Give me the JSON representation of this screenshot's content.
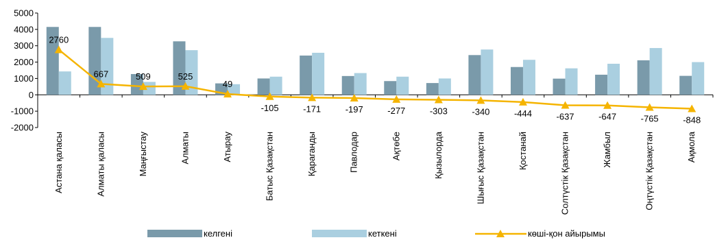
{
  "chart_data": {
    "type": "bar",
    "categories": [
      "Астана қаласы",
      "Алматы қаласы",
      "Маңғыстау",
      "Алматы",
      "Атырау",
      "Батыс Қазақстан",
      "Қараганды",
      "Павлодар",
      "Ақтөбе",
      "Қызылорда",
      "Шығыс Қазақстан",
      "Қостанай",
      "Солтүстік Қазақстан",
      "Жамбыл",
      "Оңтүстік Қазақстан",
      "Ақмола"
    ],
    "series": [
      {
        "name": "келгені",
        "kind": "bar",
        "color": "#7a9aaa",
        "values": [
          4150,
          4150,
          1270,
          3270,
          700,
          1000,
          2400,
          1150,
          840,
          720,
          2430,
          1700,
          990,
          1230,
          2110,
          1160
        ]
      },
      {
        "name": "кеткені",
        "kind": "bar",
        "color": "#aacfe0",
        "values": [
          1430,
          3480,
          790,
          2730,
          650,
          1110,
          2570,
          1330,
          1110,
          1000,
          2770,
          2140,
          1620,
          1900,
          2860,
          2000
        ]
      },
      {
        "name": "көші-қон айырымы",
        "kind": "line",
        "color": "#f5b400",
        "values": [
          2760,
          667,
          509,
          525,
          49,
          -105,
          -171,
          -197,
          -277,
          -303,
          -340,
          -444,
          -637,
          -647,
          -765,
          -848
        ],
        "labels": [
          "2760",
          "667",
          "509",
          "525",
          "49",
          "-105",
          "-171",
          "-197",
          "-277",
          "-303",
          "-340",
          "-444",
          "-637",
          "-647",
          "-765",
          "-848"
        ]
      }
    ],
    "yticks": [
      5000,
      4000,
      3000,
      2000,
      1000,
      0,
      -1000,
      -2000
    ],
    "yticklabels": [
      "5000",
      "4000",
      "3000",
      "2000",
      "1000",
      "0",
      "-1000",
      "-2000"
    ],
    "ylim": [
      -2000,
      5000
    ],
    "grid": false,
    "legend_position": "bottom"
  }
}
